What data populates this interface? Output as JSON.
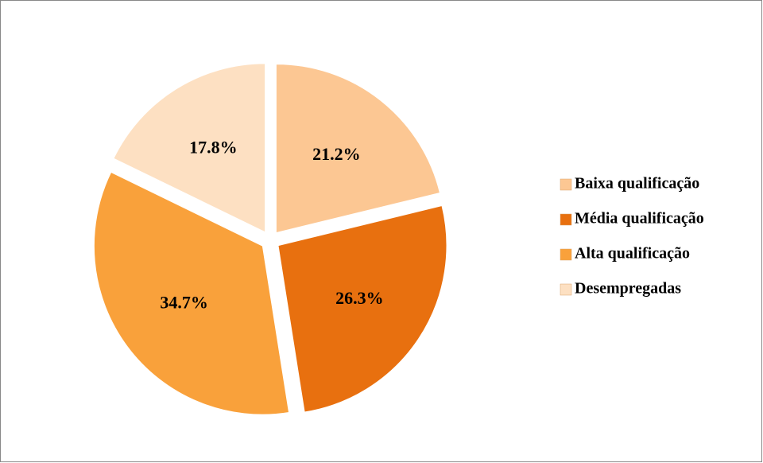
{
  "chart_data": {
    "type": "pie",
    "categories": [
      "Baixa qualificação",
      "Média qualificação",
      "Alta qualificação",
      "Desempregadas"
    ],
    "values": [
      21.2,
      26.3,
      34.7,
      17.8
    ],
    "value_labels": [
      "21.2%",
      "26.3%",
      "34.7%",
      "17.8%"
    ],
    "colors": [
      "#fcc793",
      "#e8700f",
      "#f9a13b",
      "#fde0c2"
    ],
    "legend": "right"
  }
}
